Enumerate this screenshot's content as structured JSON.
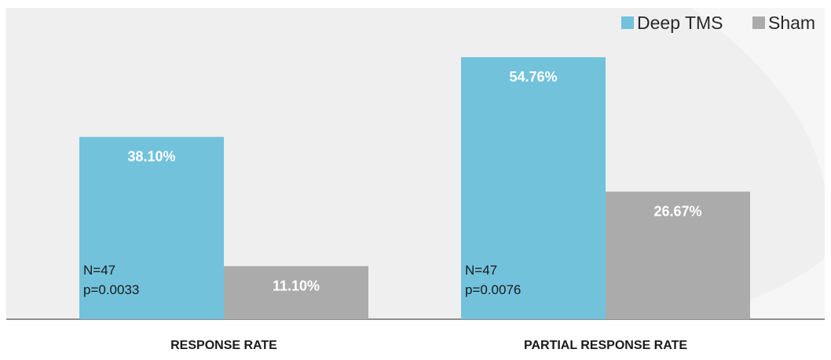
{
  "colors": {
    "deep_tms": "#72c2dc",
    "sham": "#ababab",
    "background_panel": "#efefef",
    "baseline": "#8f8f8f"
  },
  "chart_data": {
    "type": "bar",
    "title": "",
    "xlabel": "",
    "ylabel": "",
    "ylim": [
      0,
      60
    ],
    "grid": false,
    "legend_position": "top-right",
    "categories": [
      "RESPONSE RATE",
      "PARTIAL RESPONSE RATE"
    ],
    "series": [
      {
        "name": "Deep TMS",
        "values": [
          38.1,
          54.76
        ],
        "labels": [
          "38.10%",
          "54.76%"
        ]
      },
      {
        "name": "Sham",
        "values": [
          11.1,
          26.67
        ],
        "labels": [
          "11.10%",
          "26.67%"
        ]
      }
    ],
    "annotations": [
      {
        "category_index": 0,
        "lines": [
          "N=47",
          "p=0.0033"
        ]
      },
      {
        "category_index": 1,
        "lines": [
          "N=47",
          "p=0.0076"
        ]
      }
    ]
  }
}
